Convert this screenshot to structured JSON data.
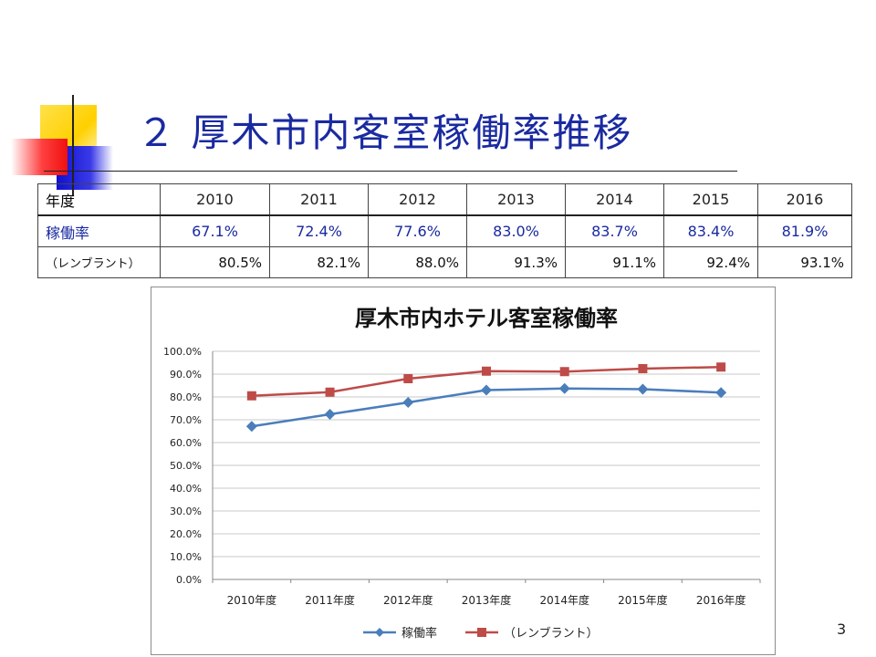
{
  "slide": {
    "title": "２ 厚木市内客室稼働率推移",
    "page_number": "3"
  },
  "table": {
    "header": [
      "年度",
      "2010",
      "2011",
      "2012",
      "2013",
      "2014",
      "2015",
      "2016"
    ],
    "rows": [
      {
        "label": "稼働率",
        "values": [
          "67.1%",
          "72.4%",
          "77.6%",
          "83.0%",
          "83.7%",
          "83.4%",
          "81.9%"
        ]
      },
      {
        "label": "（レンブラント）",
        "values": [
          "80.5%",
          "82.1%",
          "88.0%",
          "91.3%",
          "91.1%",
          "92.4%",
          "93.1%"
        ]
      }
    ]
  },
  "chart_data": {
    "type": "line",
    "title": "厚木市内ホテル客室稼働率",
    "categories": [
      "2010年度",
      "2011年度",
      "2012年度",
      "2013年度",
      "2014年度",
      "2015年度",
      "2016年度"
    ],
    "series": [
      {
        "name": "稼働率",
        "values": [
          67.1,
          72.4,
          77.6,
          83.0,
          83.7,
          83.4,
          81.9
        ],
        "color": "#4a7ebb",
        "marker": "diamond"
      },
      {
        "name": "（レンブラント）",
        "values": [
          80.5,
          82.1,
          88.0,
          91.3,
          91.1,
          92.4,
          93.1
        ],
        "color": "#be4b48",
        "marker": "square"
      }
    ],
    "ylim": [
      0,
      100
    ],
    "yticks": [
      "0.0%",
      "10.0%",
      "20.0%",
      "30.0%",
      "40.0%",
      "50.0%",
      "60.0%",
      "70.0%",
      "80.0%",
      "90.0%",
      "100.0%"
    ],
    "grid": true,
    "legend": "bottom"
  }
}
